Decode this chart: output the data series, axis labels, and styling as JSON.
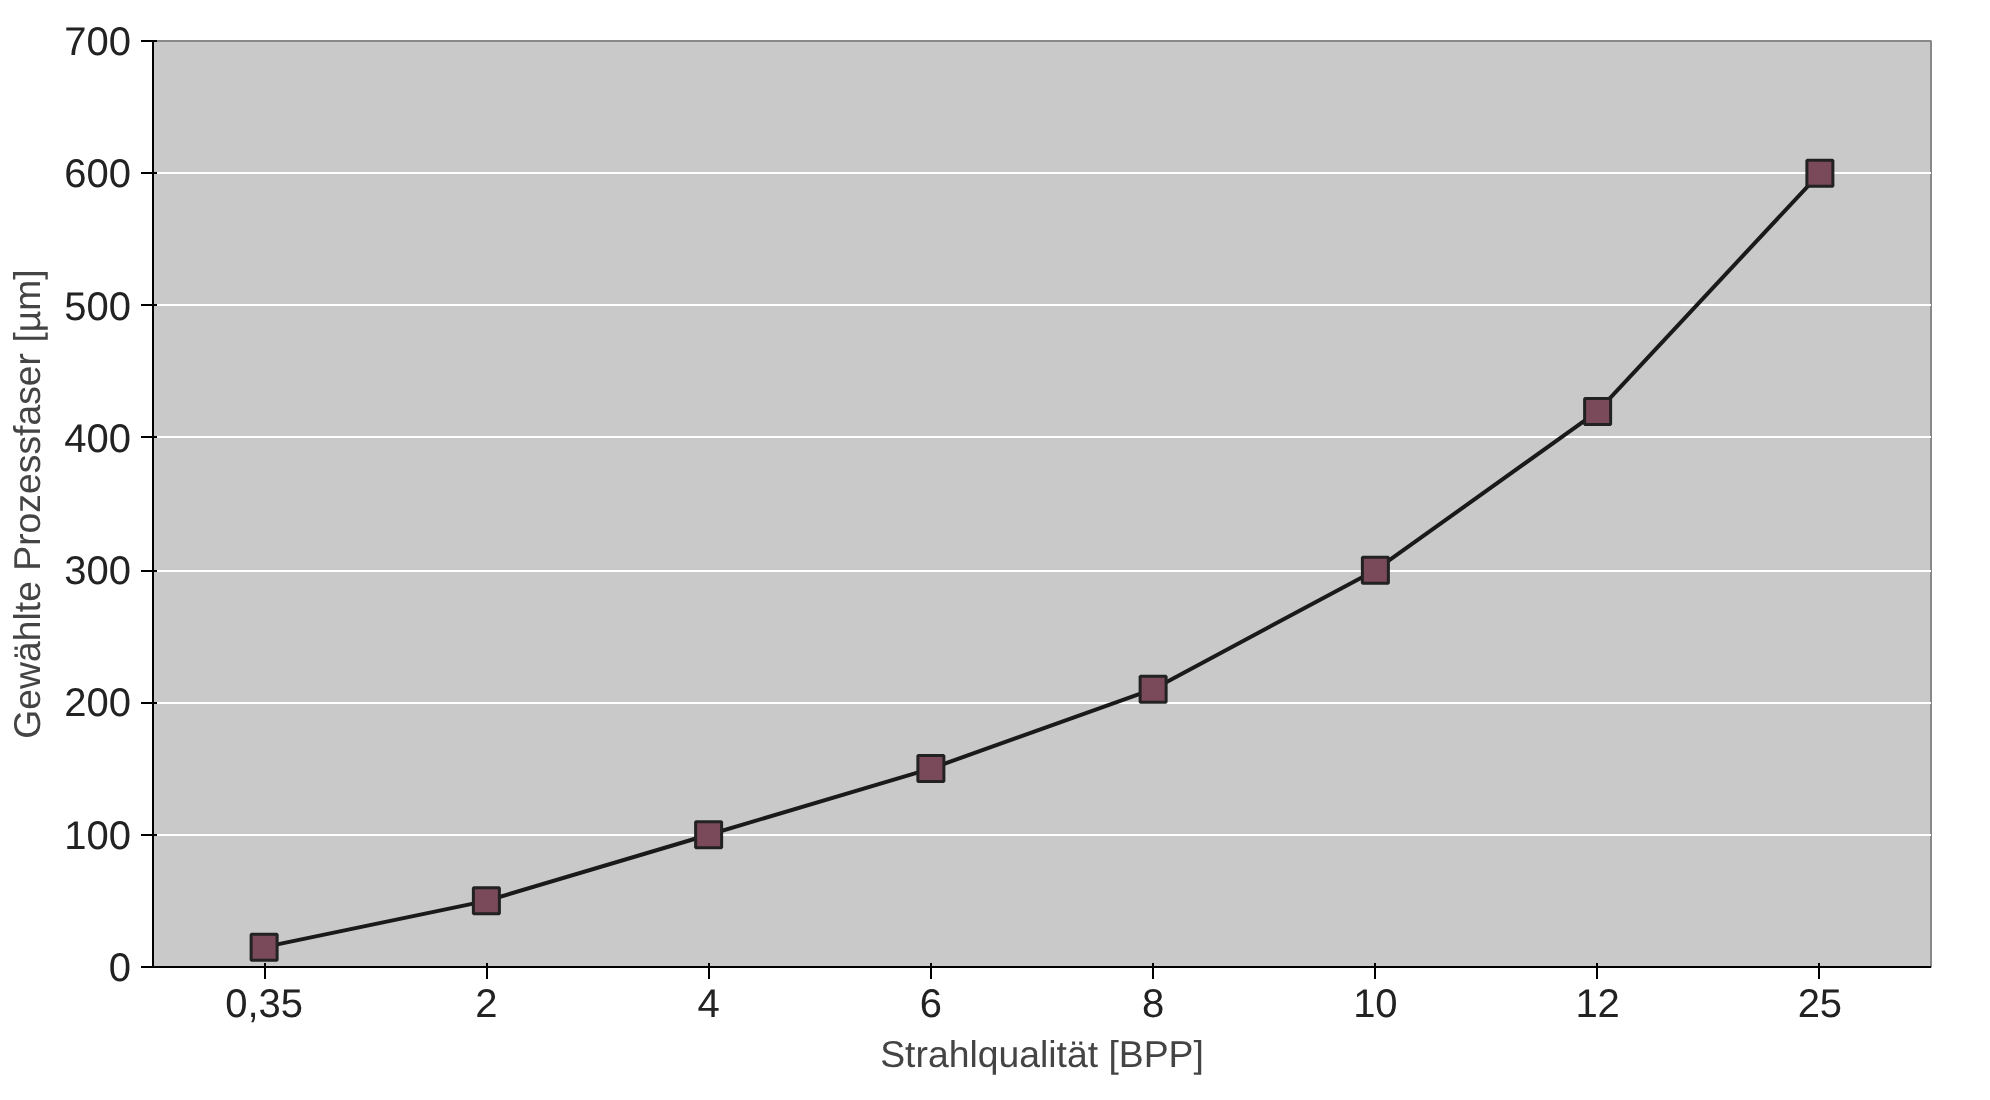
{
  "chart_data": {
    "type": "line",
    "xlabel": "Strahlqualität [BPP]",
    "ylabel": "Gewählte Prozessfaser [µm]",
    "categories": [
      "0,35",
      "2",
      "4",
      "6",
      "8",
      "10",
      "12",
      "25"
    ],
    "series": [
      {
        "color": "#1a1a1a",
        "values": [
          15,
          50,
          100,
          150,
          210,
          300,
          420,
          600
        ]
      }
    ],
    "ylim": [
      0,
      700
    ],
    "yticks": [
      0,
      100,
      200,
      300,
      400,
      500,
      600,
      700
    ],
    "grid": "y",
    "marker": "square",
    "line_style": "solid"
  }
}
